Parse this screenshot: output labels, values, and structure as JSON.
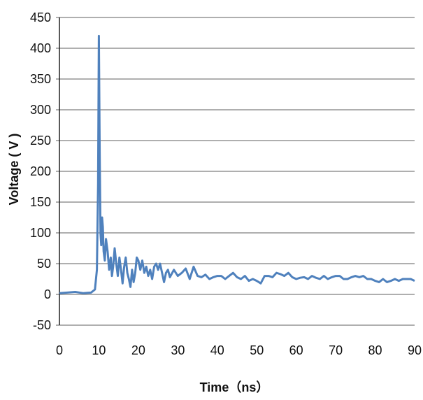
{
  "chart_data": {
    "type": "line",
    "title": "",
    "xlabel": "Time（ns）",
    "ylabel": "Voltage ( V )",
    "xlim": [
      0,
      90
    ],
    "ylim": [
      -50,
      450
    ],
    "x_ticks": [
      "0",
      "10",
      "20",
      "30",
      "40",
      "50",
      "60",
      "70",
      "80",
      "90"
    ],
    "y_ticks": [
      "-50",
      "0",
      "50",
      "100",
      "150",
      "200",
      "250",
      "300",
      "350",
      "400",
      "450"
    ],
    "grid": "horizontal",
    "legend": "none",
    "line_color": "#4f81bd",
    "series": [
      {
        "x": [
          0,
          2,
          4,
          6,
          8,
          9,
          9.5,
          9.8,
          10,
          10.2,
          10.4,
          10.6,
          10.8,
          11.0,
          11.2,
          11.5,
          11.8,
          12.2,
          12.6,
          13.0,
          13.3,
          13.6,
          14.0,
          14.4,
          14.8,
          15.2,
          15.6,
          16.0,
          16.4,
          16.8,
          17.2,
          17.6,
          18.0,
          18.4,
          18.8,
          19.2,
          19.6,
          20.0,
          20.5,
          21.0,
          21.5,
          22.0,
          22.5,
          23.0,
          23.5,
          24.0,
          24.5,
          25.0,
          25.5,
          26.0,
          26.5,
          27.0,
          27.5,
          28.0,
          29.0,
          30.0,
          31.0,
          32.0,
          33.0,
          34.0,
          35.0,
          36.0,
          37.0,
          38.0,
          39.0,
          40.0,
          41.0,
          42.0,
          43.0,
          44.0,
          45.0,
          46.0,
          47.0,
          48.0,
          49.0,
          50.0,
          51.0,
          52.0,
          53.0,
          54.0,
          55.0,
          56.0,
          57.0,
          58.0,
          59.0,
          60.0,
          61.0,
          62.0,
          63.0,
          64.0,
          65.0,
          66.0,
          67.0,
          68.0,
          69.0,
          70.0,
          71.0,
          72.0,
          73.0,
          74.0,
          75.0,
          76.0,
          77.0,
          78.0,
          79.0,
          80.0,
          81.0,
          82.0,
          83.0,
          84.0,
          85.0,
          86.0,
          87.0,
          88.0,
          89.0,
          90.0
        ],
        "values": [
          2,
          3,
          4,
          2,
          3,
          8,
          40,
          180,
          420,
          230,
          100,
          80,
          125,
          110,
          70,
          55,
          90,
          70,
          40,
          60,
          30,
          45,
          75,
          50,
          30,
          60,
          40,
          18,
          45,
          60,
          35,
          25,
          12,
          40,
          20,
          35,
          60,
          55,
          40,
          55,
          35,
          45,
          30,
          40,
          25,
          45,
          50,
          40,
          50,
          35,
          20,
          35,
          40,
          28,
          40,
          30,
          35,
          42,
          25,
          45,
          30,
          28,
          32,
          25,
          28,
          30,
          30,
          25,
          30,
          35,
          28,
          25,
          30,
          22,
          25,
          22,
          18,
          30,
          30,
          28,
          35,
          33,
          30,
          35,
          28,
          25,
          27,
          28,
          25,
          30,
          27,
          25,
          30,
          25,
          28,
          30,
          30,
          25,
          25,
          28,
          30,
          28,
          30,
          25,
          25,
          22,
          20,
          25,
          20,
          22,
          25,
          22,
          25,
          25,
          25,
          22
        ]
      }
    ]
  }
}
